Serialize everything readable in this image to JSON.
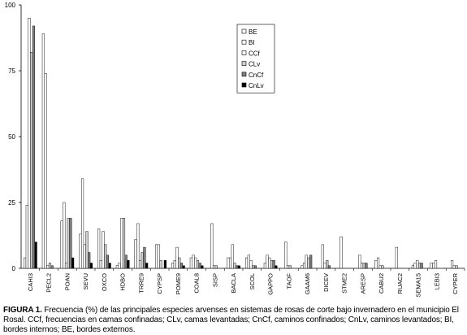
{
  "chart_data": {
    "type": "bar",
    "title": "",
    "xlabel": "",
    "ylabel": "",
    "ylim": [
      0,
      100
    ],
    "yticks": [
      0,
      25,
      50,
      75,
      100
    ],
    "grid": false,
    "legend_position": "top-center",
    "categories": [
      "CAHI3",
      "PECL2",
      "POAN",
      "SEVU",
      "OXCO",
      "HDBO",
      "TRRE9",
      "CYPSP",
      "POME9",
      "COAL8",
      "SISP",
      "BACLA",
      "SCOL",
      "GAPPO",
      "TAOF",
      "GAAM6",
      "DICEV",
      "STME2",
      "ARESP",
      "CABU2",
      "RUAC2",
      "SEMA15",
      "LEBI3",
      "CYPER"
    ],
    "series": [
      {
        "name": "BE",
        "color": "#ffffff",
        "values": [
          4,
          89,
          18,
          13,
          15,
          1,
          11,
          0,
          2,
          4,
          0,
          4,
          4,
          2,
          0,
          1,
          0,
          0,
          0,
          3,
          0,
          1,
          2,
          0
        ]
      },
      {
        "name": "BI",
        "color": "#ffffff",
        "values": [
          24,
          74,
          25,
          34,
          3,
          2,
          17,
          9,
          3,
          5,
          17,
          4,
          5,
          5,
          10,
          2,
          9,
          12,
          5,
          4,
          8,
          2,
          2,
          3
        ]
      },
      {
        "name": "CCf",
        "color": "#ffffff",
        "values": [
          95,
          1,
          2,
          9,
          14,
          19,
          3,
          9,
          8,
          4,
          1,
          9,
          3,
          4,
          1,
          5,
          2,
          0,
          2,
          1,
          0,
          3,
          3,
          1
        ]
      },
      {
        "name": "CLv",
        "color": "#d0d0d0",
        "values": [
          82,
          2,
          19,
          14,
          9,
          19,
          6,
          3,
          4,
          3,
          1,
          2,
          1,
          3,
          1,
          4,
          3,
          0,
          2,
          1,
          0,
          2,
          0,
          1
        ]
      },
      {
        "name": "CnCf",
        "color": "#808080",
        "values": [
          92,
          1,
          19,
          6,
          5,
          5,
          8,
          0,
          2,
          2,
          0,
          1,
          1,
          3,
          0,
          5,
          1,
          0,
          2,
          0,
          0,
          2,
          0,
          0
        ]
      },
      {
        "name": "CnLv",
        "color": "#000000",
        "values": [
          10,
          0,
          4,
          2,
          2,
          3,
          2,
          3,
          1,
          1,
          0,
          1,
          0,
          1,
          0,
          0,
          0,
          0,
          0,
          0,
          0,
          0,
          0,
          0
        ]
      }
    ]
  },
  "caption": {
    "label": "FIGURA 1.",
    "text": " Frecuencia (%) de las principales especies arvenses en sistemas de rosas de corte bajo invernadero en el municipio El Rosal. CCf, frecuencias en camas confinadas; CLv, camas levantadas; CnCf, caminos confinados; CnLv, caminos levantados; BI, bordes internos; BE, bordes externos."
  }
}
